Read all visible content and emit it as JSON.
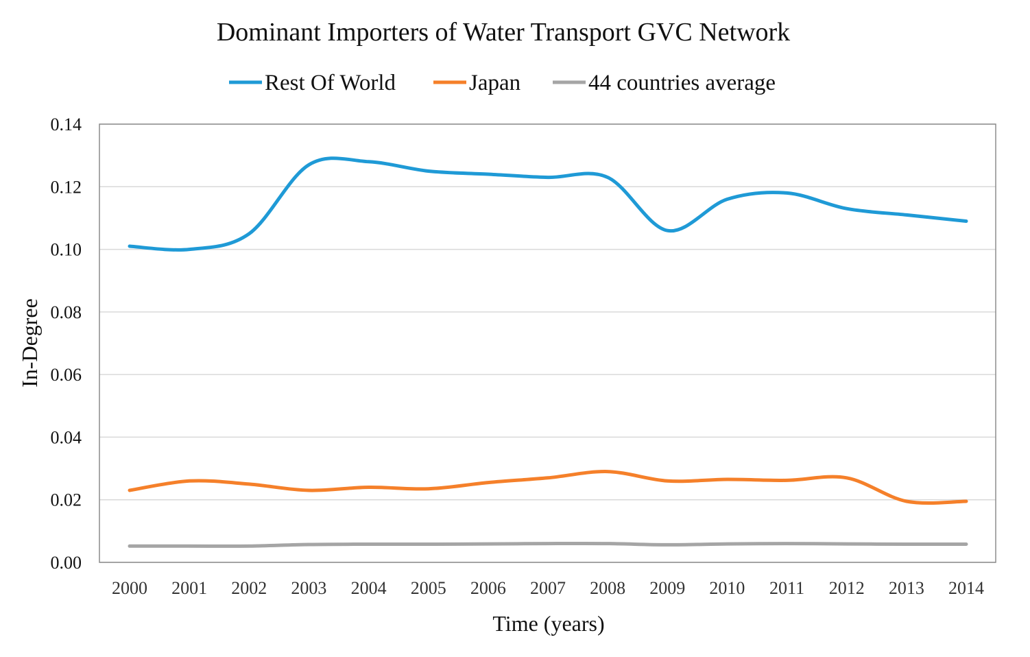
{
  "chart_data": {
    "type": "line",
    "title": "Dominant Importers of Water Transport GVC Network",
    "xlabel": "Time (years)",
    "ylabel": "In-Degree",
    "categories": [
      "2000",
      "2001",
      "2002",
      "2003",
      "2004",
      "2005",
      "2006",
      "2007",
      "2008",
      "2009",
      "2010",
      "2011",
      "2012",
      "2013",
      "2014"
    ],
    "ylim": [
      0,
      0.14
    ],
    "yticks": [
      "0.00",
      "0.02",
      "0.04",
      "0.06",
      "0.08",
      "0.10",
      "0.12",
      "0.14"
    ],
    "grid": true,
    "legend_position": "top",
    "series": [
      {
        "name": "Rest Of World",
        "color": "#1f9ad6",
        "values": [
          0.101,
          0.1,
          0.105,
          0.127,
          0.128,
          0.125,
          0.124,
          0.123,
          0.123,
          0.106,
          0.116,
          0.118,
          0.113,
          0.111,
          0.109
        ]
      },
      {
        "name": "Japan",
        "color": "#f5802a",
        "values": [
          0.023,
          0.026,
          0.025,
          0.023,
          0.024,
          0.0235,
          0.0255,
          0.027,
          0.029,
          0.026,
          0.0265,
          0.0262,
          0.027,
          0.0195,
          0.0195
        ]
      },
      {
        "name": "44 countries average",
        "color": "#a5a5a5",
        "values": [
          0.0052,
          0.0052,
          0.0052,
          0.0057,
          0.0058,
          0.0058,
          0.0059,
          0.006,
          0.006,
          0.0056,
          0.0059,
          0.006,
          0.0059,
          0.0058,
          0.0058
        ]
      }
    ]
  }
}
